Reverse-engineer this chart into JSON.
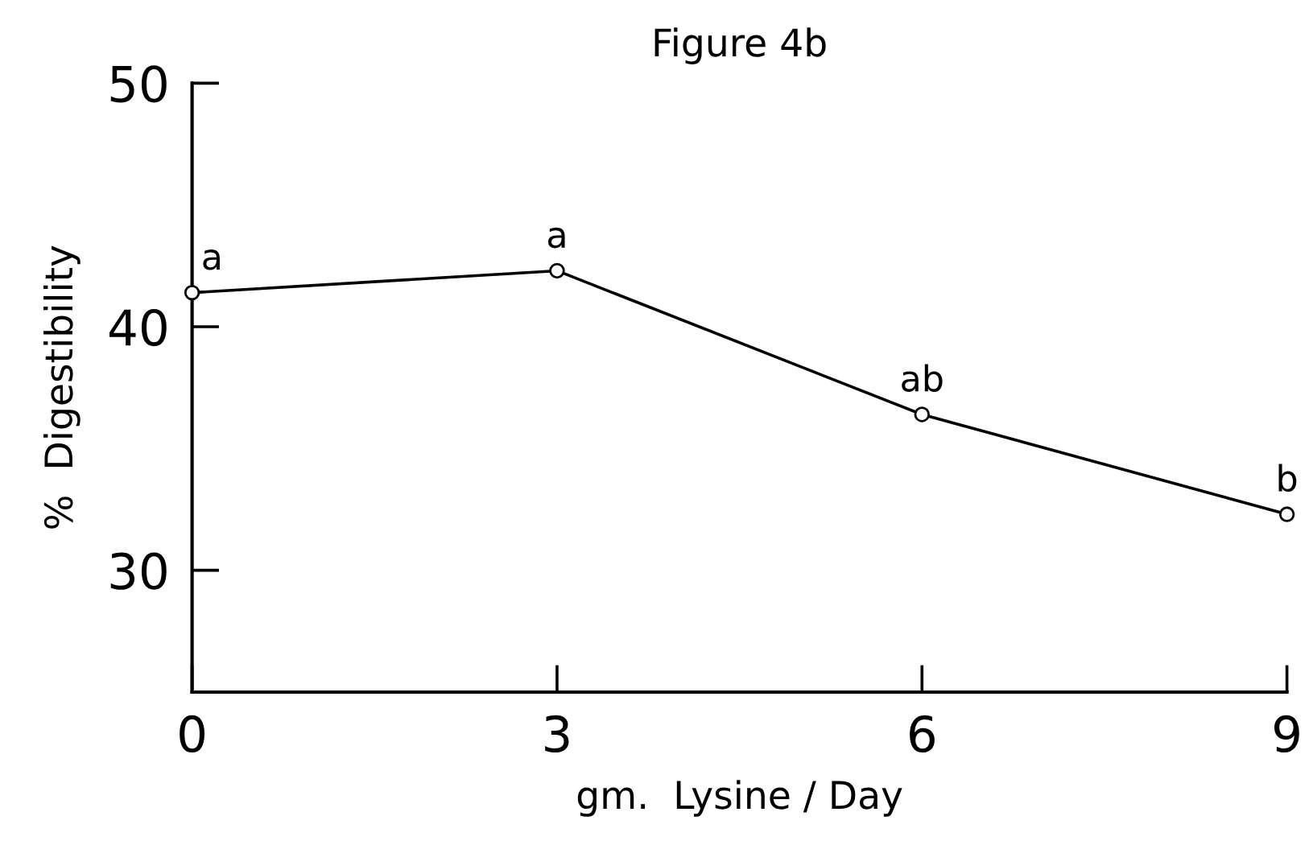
{
  "chart_data": {
    "type": "line",
    "title": "Figure 4b",
    "xlabel": "gm.  Lysine / Day",
    "ylabel": "%  Digestibility",
    "x": [
      0,
      3,
      6,
      9
    ],
    "series": [
      {
        "color": "#000000",
        "values": [
          41.4,
          42.3,
          36.4,
          32.3
        ]
      }
    ],
    "xlim": [
      0,
      9
    ],
    "ylim": [
      25,
      50
    ],
    "xticks": [
      0,
      3,
      6,
      9
    ],
    "yticks": [
      30,
      40,
      50
    ],
    "marker": "circle",
    "line_style": "solid",
    "grid": false,
    "legend": false,
    "annotations": [
      {
        "text": "a",
        "x": 0,
        "y": 41.4
      },
      {
        "text": "a",
        "x": 3,
        "y": 42.3
      },
      {
        "text": "ab",
        "x": 6,
        "y": 36.4
      },
      {
        "text": "b",
        "x": 9,
        "y": 32.3
      }
    ]
  }
}
